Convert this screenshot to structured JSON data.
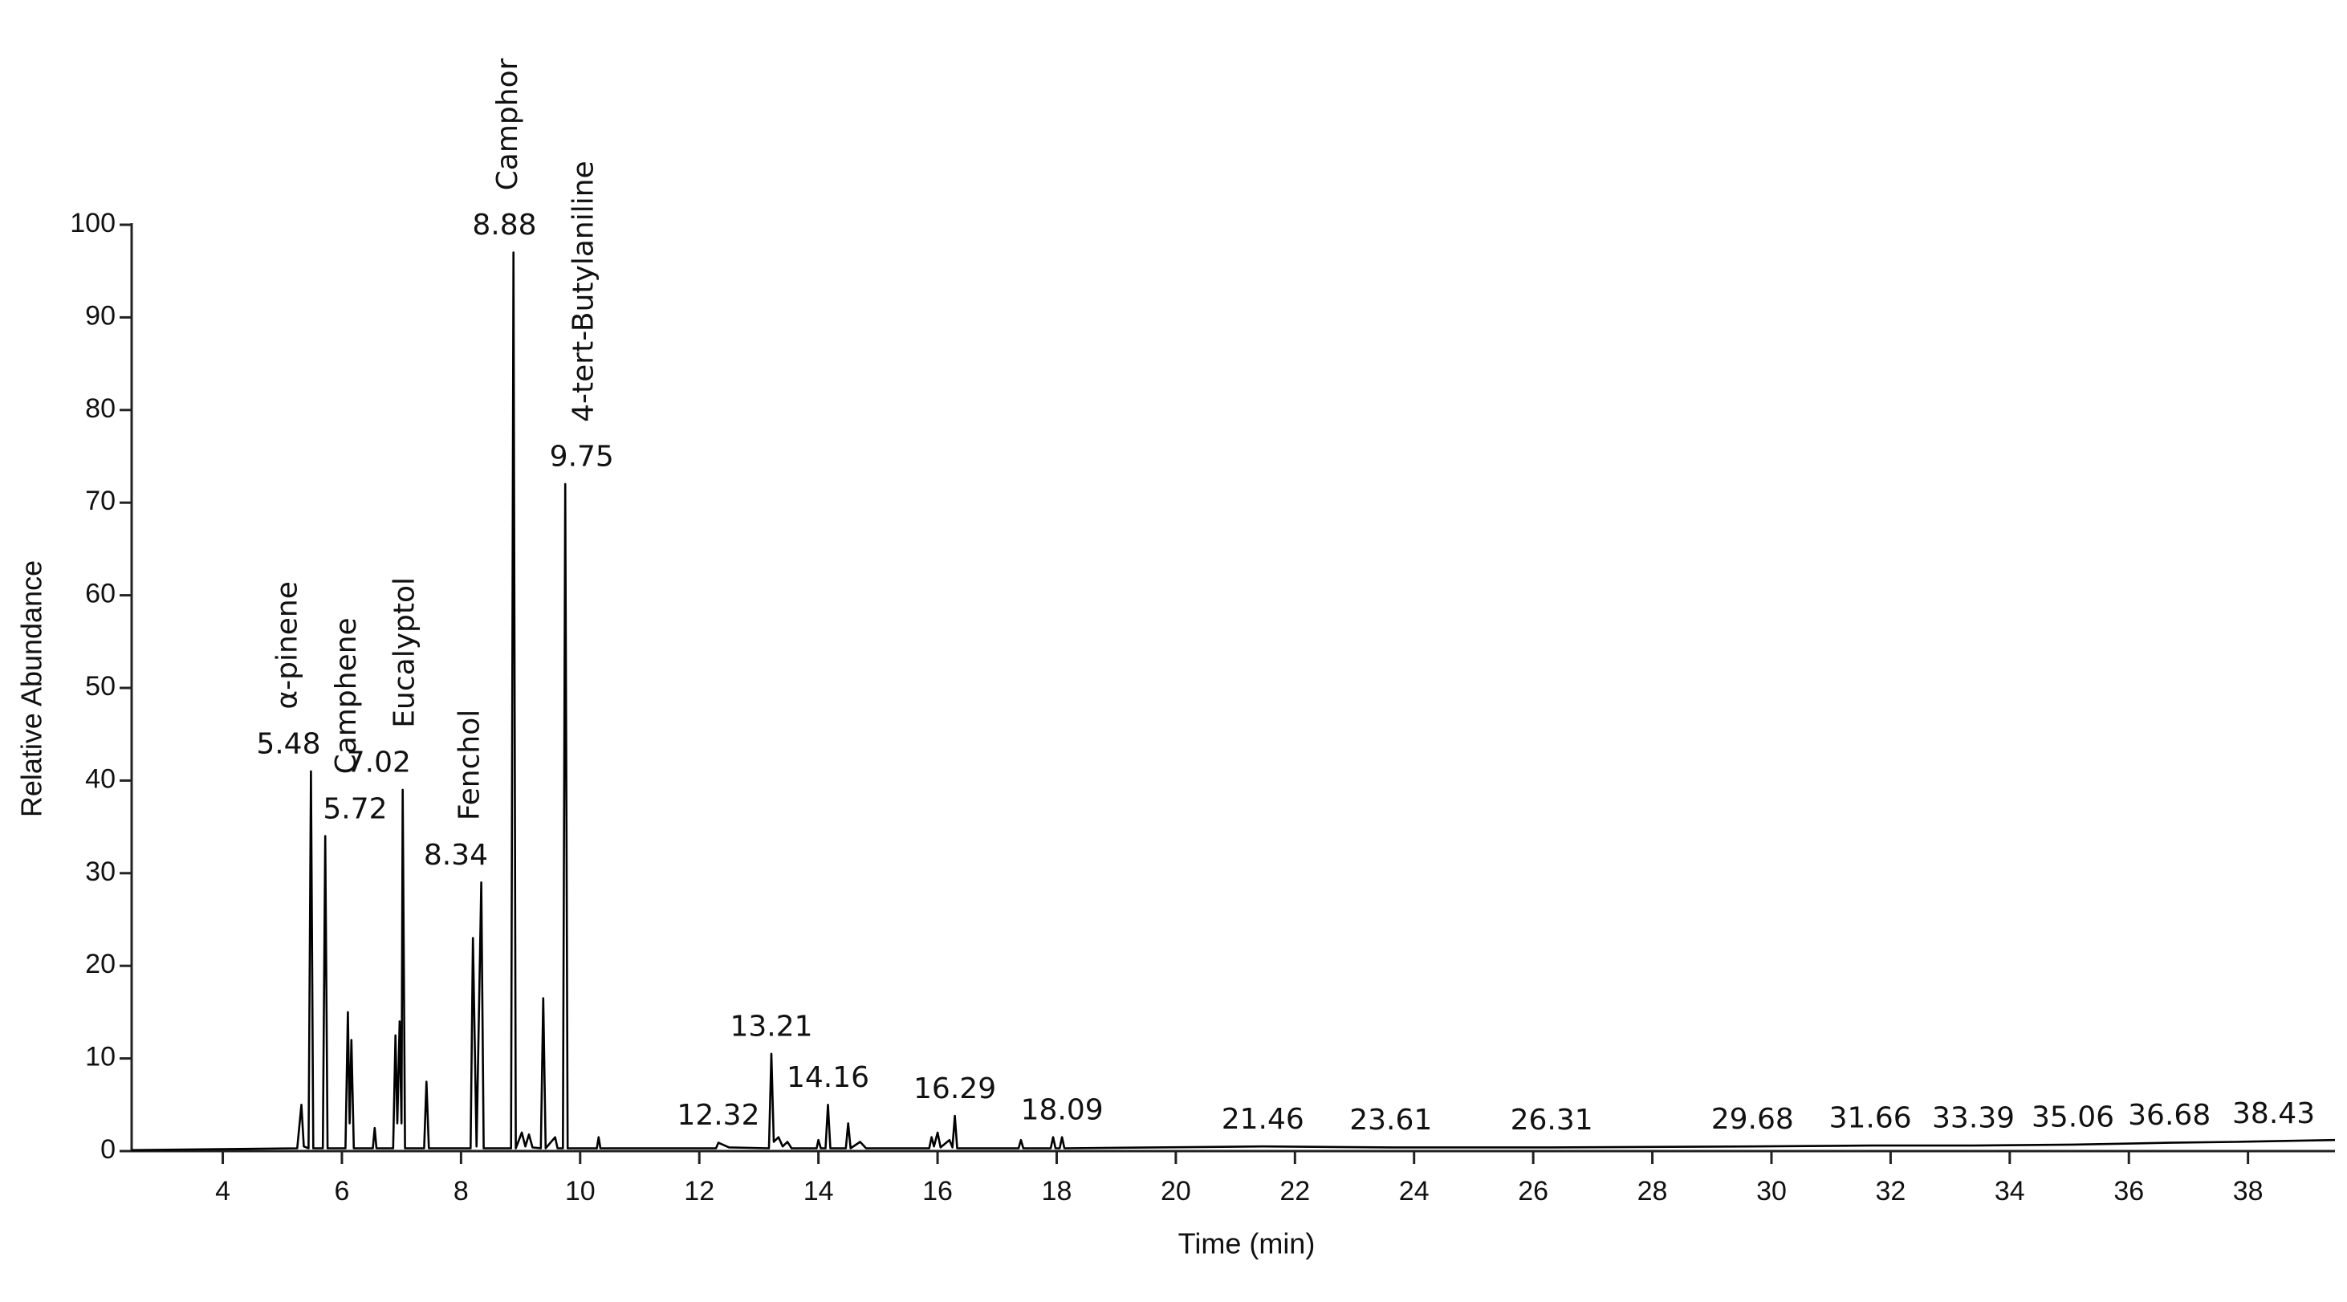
{
  "chart_data": {
    "type": "line",
    "x_label": "Time (min)",
    "y_label": "Relative Abundance",
    "color": "#000000",
    "xlim": [
      2.47,
      39.46
    ],
    "ylim": [
      0,
      100
    ],
    "xticks": [
      4,
      6,
      8,
      10,
      12,
      14,
      16,
      18,
      20,
      22,
      24,
      26,
      28,
      30,
      32,
      34,
      36,
      38
    ],
    "yticks": [
      0,
      10,
      20,
      30,
      40,
      50,
      60,
      70,
      80,
      90,
      100
    ],
    "x": [
      2.47,
      5.25,
      5.32,
      5.36,
      5.44,
      5.48,
      5.52,
      5.68,
      5.72,
      5.76,
      6.06,
      6.1,
      6.13,
      6.16,
      6.2,
      6.52,
      6.55,
      6.58,
      6.86,
      6.9,
      6.93,
      6.97,
      7.0,
      7.02,
      7.06,
      7.38,
      7.42,
      7.46,
      8.16,
      8.2,
      8.26,
      8.34,
      8.38,
      8.84,
      8.88,
      8.92,
      9.02,
      9.08,
      9.14,
      9.2,
      9.34,
      9.38,
      9.42,
      9.58,
      9.62,
      9.71,
      9.75,
      9.79,
      10.28,
      10.31,
      10.34,
      12.28,
      12.32,
      12.5,
      13.17,
      13.21,
      13.25,
      13.33,
      13.4,
      13.48,
      13.55,
      13.97,
      14.0,
      14.04,
      14.12,
      14.16,
      14.2,
      14.46,
      14.5,
      14.54,
      14.7,
      14.8,
      15.86,
      15.9,
      15.94,
      16.0,
      16.05,
      16.2,
      16.25,
      16.29,
      16.33,
      17.36,
      17.4,
      17.44,
      17.9,
      17.94,
      17.98,
      18.05,
      18.09,
      18.13,
      21.46,
      23.61,
      26.31,
      29.68,
      31.66,
      33.39,
      35.06,
      36.68,
      37.8,
      39.46
    ],
    "values": [
      0.1,
      0.3,
      5,
      0.5,
      0.3,
      41,
      0.3,
      0.3,
      34,
      0.3,
      0.3,
      15,
      3,
      12,
      0.3,
      0.3,
      2.5,
      0.3,
      0.3,
      12.5,
      3,
      14,
      3,
      39,
      0.3,
      0.3,
      7.5,
      0.3,
      0.3,
      23,
      0.5,
      29,
      0.3,
      0.3,
      97,
      0.3,
      2,
      0.5,
      1.8,
      0.4,
      0.3,
      16.5,
      0.3,
      1.5,
      0.3,
      0.3,
      72,
      0.3,
      0.3,
      1.5,
      0.3,
      0.3,
      0.9,
      0.4,
      0.3,
      10.5,
      1,
      1.5,
      0.5,
      1,
      0.3,
      0.3,
      1.2,
      0.3,
      0.3,
      5,
      0.3,
      0.3,
      3,
      0.3,
      1,
      0.3,
      0.3,
      1.5,
      0.5,
      2,
      0.4,
      1.2,
      0.4,
      3.8,
      0.3,
      0.3,
      1.2,
      0.3,
      0.3,
      1.5,
      0.3,
      0.3,
      1.5,
      0.3,
      0.5,
      0.4,
      0.4,
      0.5,
      0.6,
      0.6,
      0.7,
      0.9,
      1,
      1.2
    ],
    "annotations": [
      {
        "text": "5.48",
        "x": 5.48,
        "y": 41,
        "name": "α-pinene"
      },
      {
        "text": "5.72",
        "x": 5.72,
        "y": 34,
        "name": "Camphene"
      },
      {
        "text": "7.02",
        "x": 7.02,
        "y": 39,
        "name": "Eucalyptol"
      },
      {
        "text": "8.34",
        "x": 8.34,
        "y": 29,
        "name": "Fenchol"
      },
      {
        "text": "8.88",
        "x": 8.88,
        "y": 97,
        "name": "Camphor"
      },
      {
        "text": "9.75",
        "x": 9.75,
        "y": 72,
        "name": "4-tert-Butylaniline"
      },
      {
        "text": "12.32",
        "x": 12.32,
        "y": 0.9
      },
      {
        "text": "13.21",
        "x": 13.21,
        "y": 10.5
      },
      {
        "text": "14.16",
        "x": 14.16,
        "y": 5
      },
      {
        "text": "16.29",
        "x": 16.29,
        "y": 3.8
      },
      {
        "text": "18.09",
        "x": 18.09,
        "y": 1.5
      },
      {
        "text": "21.46",
        "x": 21.46,
        "y": 0.5
      },
      {
        "text": "23.61",
        "x": 23.61,
        "y": 0.4
      },
      {
        "text": "26.31",
        "x": 26.31,
        "y": 0.4
      },
      {
        "text": "29.68",
        "x": 29.68,
        "y": 0.5
      },
      {
        "text": "31.66",
        "x": 31.66,
        "y": 0.6
      },
      {
        "text": "33.39",
        "x": 33.39,
        "y": 0.6
      },
      {
        "text": "35.06",
        "x": 35.06,
        "y": 0.7
      },
      {
        "text": "36.68",
        "x": 36.68,
        "y": 0.9
      },
      {
        "text": "38.43",
        "x": 38.43,
        "y": 1.1
      }
    ]
  }
}
